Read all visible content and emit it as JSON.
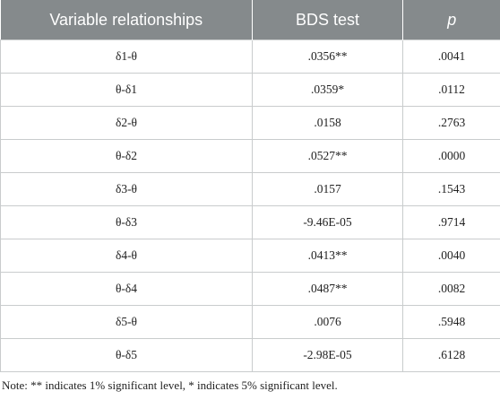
{
  "table": {
    "headers": [
      "Variable relationships",
      "BDS test",
      "p"
    ],
    "rows": [
      [
        "δ1-θ",
        ".0356**",
        ".0041"
      ],
      [
        "θ-δ1",
        ".0359*",
        ".0112"
      ],
      [
        "δ2-θ",
        ".0158",
        ".2763"
      ],
      [
        "θ-δ2",
        ".0527**",
        ".0000"
      ],
      [
        "δ3-θ",
        ".0157",
        ".1543"
      ],
      [
        "θ-δ3",
        "-9.46E-05",
        ".9714"
      ],
      [
        "δ4-θ",
        ".0413**",
        ".0040"
      ],
      [
        "θ-δ4",
        ".0487**",
        ".0082"
      ],
      [
        "δ5-θ",
        ".0076",
        ".5948"
      ],
      [
        "θ-δ5",
        "-2.98E-05",
        ".6128"
      ]
    ]
  },
  "note": "Note: ** indicates 1% significant level, * indicates 5% significant level.",
  "colors": {
    "header_bg": "#858a8c",
    "header_text": "#ffffff",
    "border": "#c9cccd"
  }
}
